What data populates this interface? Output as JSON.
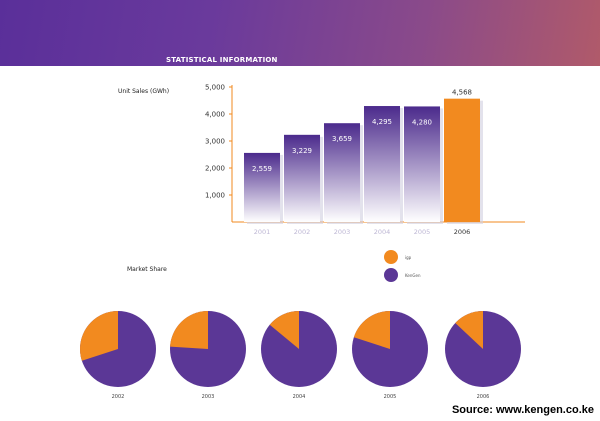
{
  "header": {
    "title": "STATISTICAL INFORMATION"
  },
  "colors": {
    "igp": "#f28a1f",
    "kengen": "#5b3796",
    "banner_start": "#5a2f9a",
    "banner_end": "#b05a6a"
  },
  "chart_data": [
    {
      "type": "bar",
      "title": "",
      "ylabel": "Unit Sales (GWh)",
      "categories": [
        "2001",
        "2002",
        "2003",
        "2004",
        "2005",
        "2006"
      ],
      "values": [
        2559,
        3229,
        3659,
        4295,
        4280,
        4568
      ],
      "value_labels": [
        "2,559",
        "3,229",
        "3,659",
        "4,295",
        "4,280",
        "4,568"
      ],
      "yticks": [
        "1,000",
        "2,000",
        "3,000",
        "4,000",
        "5,000"
      ],
      "ylim": [
        0,
        5000
      ],
      "highlight_category": "2006",
      "grid": false
    },
    {
      "type": "pie",
      "title": "Market Share",
      "legend": [
        {
          "name": "igp",
          "color": "#f28a1f"
        },
        {
          "name": "KenGen",
          "color": "#5b3796"
        }
      ],
      "pies": [
        {
          "year": "2002",
          "igp_share": 0.3
        },
        {
          "year": "2003",
          "igp_share": 0.24
        },
        {
          "year": "2004",
          "igp_share": 0.14
        },
        {
          "year": "2005",
          "igp_share": 0.2
        },
        {
          "year": "2006",
          "igp_share": 0.13
        }
      ]
    }
  ],
  "footer": {
    "source": "Source: www.kengen.co.ke"
  }
}
